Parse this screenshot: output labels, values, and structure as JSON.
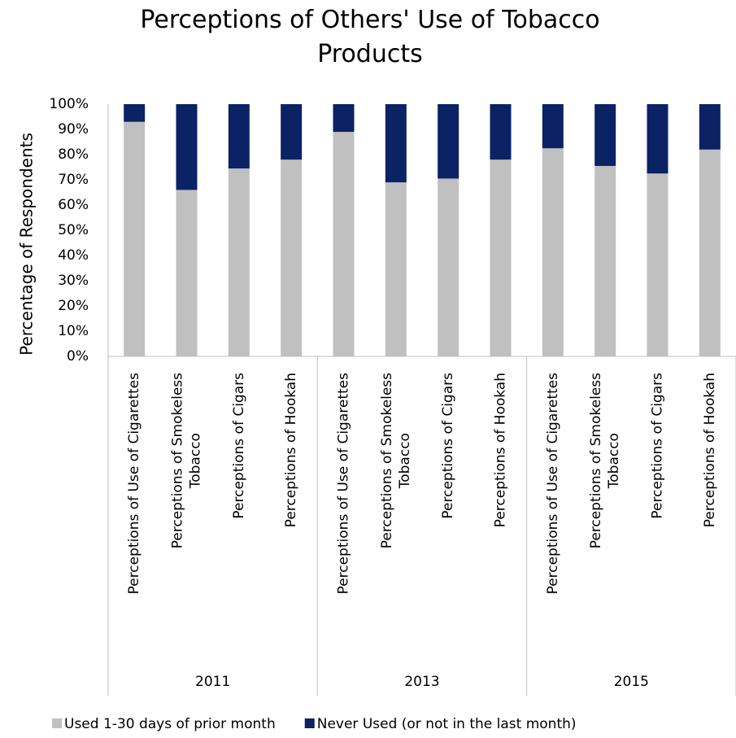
{
  "chart_data": {
    "type": "stacked_bar",
    "title": "Perceptions of Others' Use of Tobacco Products",
    "ylabel": "Percentage of Respondents",
    "categories": [
      [
        "Perceptions of Use of Cigarettes"
      ],
      [
        "Perceptions of  Smokeless",
        "Tobacco"
      ],
      [
        "Perceptions of Cigars"
      ],
      [
        "Perceptions of Hookah"
      ],
      [
        "Perceptions of Use of Cigarettes"
      ],
      [
        "Perceptions of  Smokeless",
        "Tobacco"
      ],
      [
        "Perceptions of Cigars"
      ],
      [
        "Perceptions of Hookah"
      ],
      [
        "Perceptions of Use of Cigarettes"
      ],
      [
        "Perceptions of  Smokeless",
        "Tobacco"
      ],
      [
        "Perceptions of Cigars"
      ],
      [
        "Perceptions of Hookah"
      ]
    ],
    "groups": [
      "2011",
      "2013",
      "2015"
    ],
    "series": [
      {
        "name": "Used 1-30 days of prior month",
        "color": "#c0c0c0",
        "values": [
          93,
          66,
          74.5,
          78,
          89,
          69,
          70.5,
          78,
          82.5,
          75.5,
          72.5,
          82
        ]
      },
      {
        "name": "Never Used (or not in the last month)",
        "color": "#0b2265",
        "values": [
          7,
          34,
          25.5,
          22,
          11,
          31,
          29.5,
          22,
          17.5,
          24.5,
          27.5,
          18
        ]
      }
    ],
    "ylim": [
      0,
      100
    ],
    "yticks": [
      {
        "value": 0,
        "label": "0%"
      },
      {
        "value": 10,
        "label": "10%"
      },
      {
        "value": 20,
        "label": "20%"
      },
      {
        "value": 30,
        "label": "30%"
      },
      {
        "value": 40,
        "label": "40%"
      },
      {
        "value": 50,
        "label": "50%"
      },
      {
        "value": 60,
        "label": "60%"
      },
      {
        "value": 70,
        "label": "70%"
      },
      {
        "value": 80,
        "label": "80%"
      },
      {
        "value": 90,
        "label": "90%"
      },
      {
        "value": 100,
        "label": "100%"
      }
    ],
    "legend": "bottom"
  }
}
